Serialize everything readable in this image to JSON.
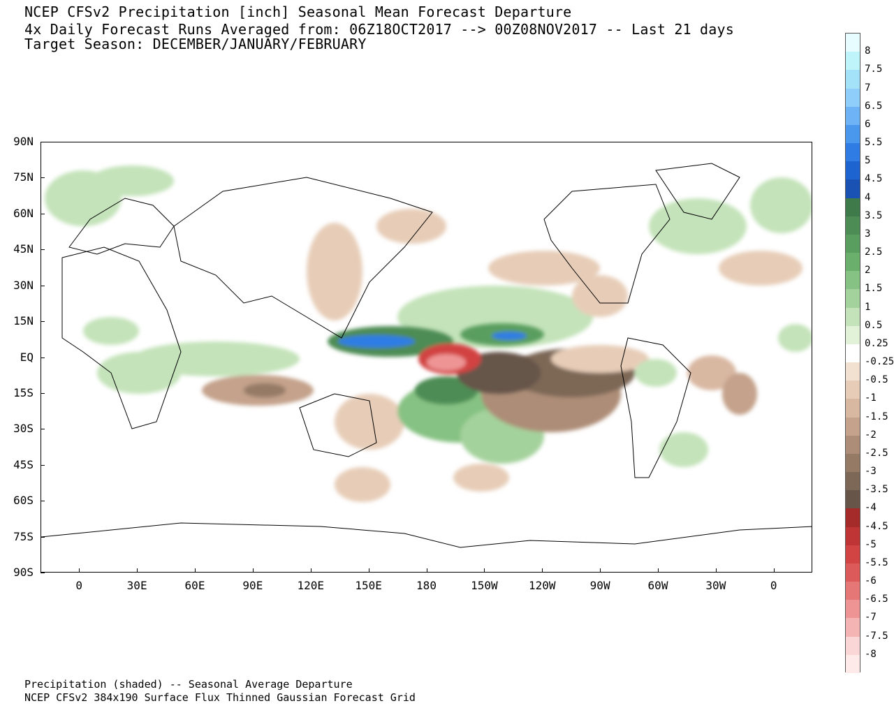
{
  "header": {
    "line1": "NCEP CFSv2 Precipitation [inch] Seasonal Mean Forecast Departure",
    "line2": "4x Daily Forecast Runs Averaged from: 06Z18OCT2017 --> 00Z08NOV2017 -- Last 21 days",
    "line3": "Target Season: DECEMBER/JANUARY/FEBRUARY"
  },
  "footer": {
    "line1": "Precipitation (shaded) -- Seasonal Average Departure",
    "line2": "NCEP CFSv2 384x190 Surface Flux Thinned Gaussian Forecast Grid"
  },
  "map": {
    "lat_labels": [
      "90N",
      "75N",
      "60N",
      "45N",
      "30N",
      "15N",
      "EQ",
      "15S",
      "30S",
      "45S",
      "60S",
      "75S",
      "90S"
    ],
    "lon_labels": [
      "0",
      "30E",
      "60E",
      "90E",
      "120E",
      "150E",
      "180",
      "150W",
      "120W",
      "90W",
      "60W",
      "30W",
      "0"
    ],
    "lon_values": [
      0,
      30,
      60,
      90,
      120,
      150,
      180,
      210,
      240,
      270,
      300,
      330,
      360
    ],
    "lon_range": [
      -20,
      380
    ],
    "lat_range": [
      -90,
      90
    ],
    "anomalies": [
      {
        "name": "west-pacific-wet-core",
        "lon": 150,
        "lat": 10,
        "value": 5.5
      },
      {
        "name": "east-pacific-wet-core",
        "lon": 232,
        "lat": 10,
        "value": 5
      },
      {
        "name": "central-pacific-dry-core",
        "lon": 185,
        "lat": 0,
        "value": -6.5
      },
      {
        "name": "central-pacific-dry-tongue",
        "lon": 210,
        "lat": -6,
        "value": -3.5
      },
      {
        "name": "south-pacific-wet-band",
        "lon": 175,
        "lat": -20,
        "value": 2.5
      },
      {
        "name": "indian-ocean-dry",
        "lon": 88,
        "lat": -16,
        "value": -1.5
      },
      {
        "name": "atlantic-dry",
        "lon": 342,
        "lat": -18,
        "value": -1.5
      },
      {
        "name": "gulf-of-mexico-dry",
        "lon": 270,
        "lat": 28,
        "value": -1
      },
      {
        "name": "north-atlantic-wet",
        "lon": 305,
        "lat": 55,
        "value": 1.5
      },
      {
        "name": "north-pacific-dry",
        "lon": 235,
        "lat": 35,
        "value": -1
      },
      {
        "name": "maritime-continent-wet",
        "lon": 110,
        "lat": -5,
        "value": 1.5
      }
    ]
  },
  "colorbar": {
    "labels": [
      "8",
      "7.5",
      "7",
      "6.5",
      "6",
      "5.5",
      "5",
      "4.5",
      "4",
      "3.5",
      "3",
      "2.5",
      "2",
      "1.5",
      "1",
      "0.5",
      "0.25",
      "-0.25",
      "-0.5",
      "-1",
      "-1.5",
      "-2",
      "-2.5",
      "-3",
      "-3.5",
      "-4",
      "-4.5",
      "-5",
      "-5.5",
      "-6",
      "-6.5",
      "-7",
      "-7.5",
      "-8"
    ],
    "colors": [
      "#e6fcff",
      "#bff4fb",
      "#a3e2f8",
      "#8fcdfb",
      "#6db3f5",
      "#4a98ee",
      "#2f7de4",
      "#1e64d0",
      "#1a52b4",
      "#3f7a4a",
      "#4e8c55",
      "#5a9e5f",
      "#6ab06c",
      "#86c283",
      "#a4d29c",
      "#c4e3ba",
      "#e1f2d9",
      "#ffffff",
      "#f2e1d0",
      "#e7cdb8",
      "#d9b8a2",
      "#c4a28b",
      "#ad8d77",
      "#957a66",
      "#7d6857",
      "#665548",
      "#a52a2a",
      "#bf3434",
      "#d24343",
      "#dd5a5a",
      "#e67777",
      "#ee9494",
      "#f5b4b4",
      "#fbd6d6",
      "#ffeaea"
    ]
  }
}
